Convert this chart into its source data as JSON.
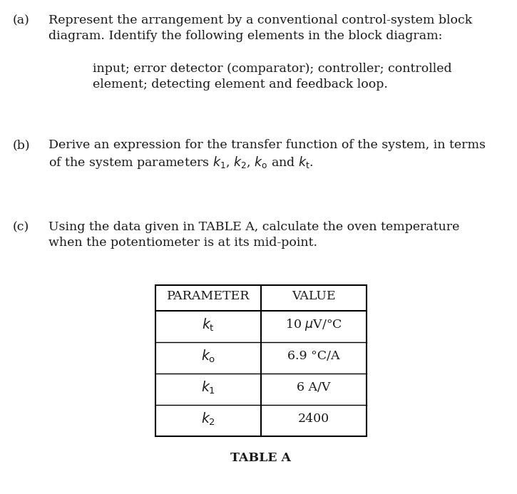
{
  "background_color": "#ffffff",
  "text_color": "#1a1a1a",
  "part_a_label": "(a)",
  "part_a_line1": "Represent the arrangement by a conventional control-system block",
  "part_a_line2": "diagram. Identify the following elements in the block diagram:",
  "part_a_indent1": "input; error detector (comparator); controller; controlled",
  "part_a_indent2": "element; detecting element and feedback loop.",
  "part_b_label": "(b)",
  "part_b_line1": "Derive an expression for the transfer function of the system, in terms",
  "part_b_line2": "of the system parameters $k_1$, $k_2$, $k_\\mathrm{o}$ and $k_\\mathrm{t}$.",
  "part_c_label": "(c)",
  "part_c_line1": "Using the data given in TABLE A, calculate the oven temperature",
  "part_c_line2": "when the potentiometer is at its mid-point.",
  "table_headers": [
    "PARAMETER",
    "VALUE"
  ],
  "table_param_labels": [
    "$k_\\mathrm{t}$",
    "$k_\\mathrm{o}$",
    "$k_1$",
    "$k_2$"
  ],
  "table_values": [
    "10 $\\mu$V/°C",
    "6.9 °C/A",
    "6 A/V",
    "2400"
  ],
  "table_caption": "TABLE A",
  "font_size": 12.5,
  "font_size_table": 12.5
}
